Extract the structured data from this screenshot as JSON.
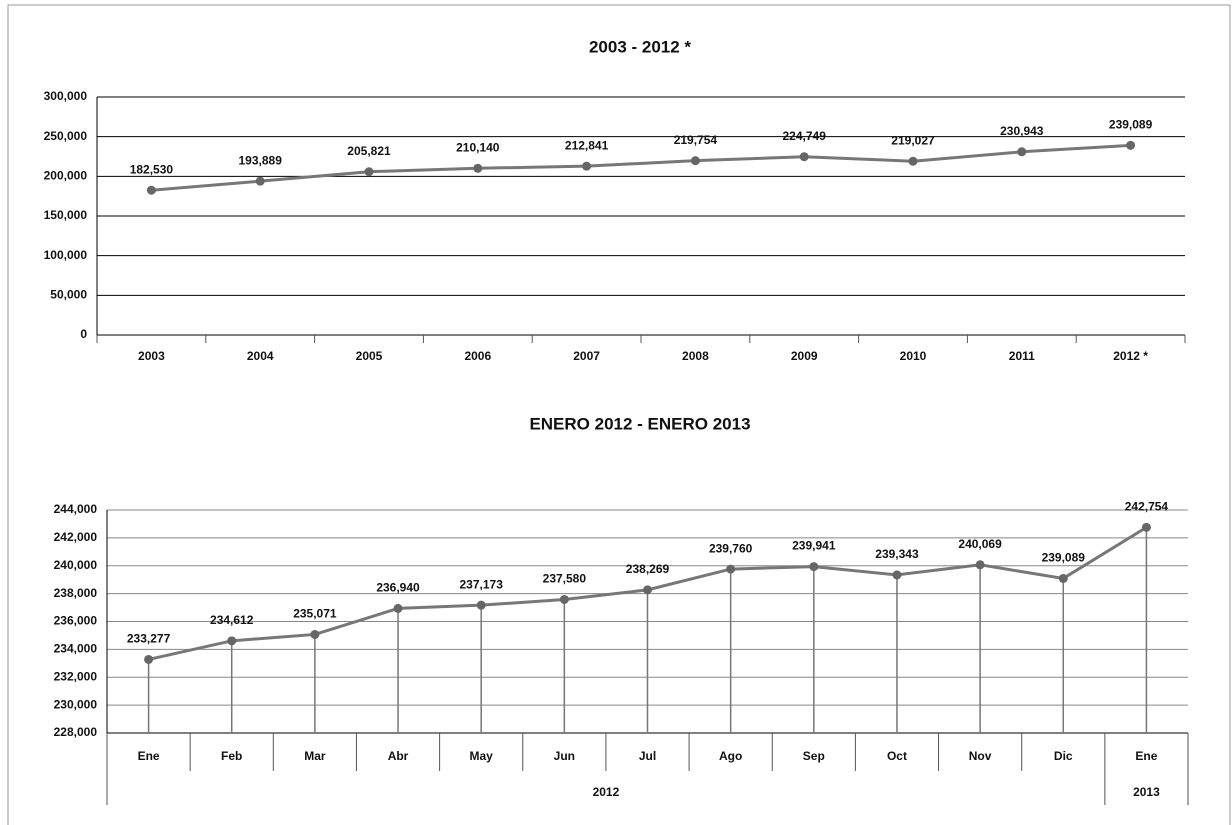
{
  "chart_data": [
    {
      "type": "line",
      "title": "2003 - 2012 *",
      "categories": [
        "2003",
        "2004",
        "2005",
        "2006",
        "2007",
        "2008",
        "2009",
        "2010",
        "2011",
        "2012 *"
      ],
      "values": [
        182530,
        193889,
        205821,
        210140,
        212841,
        219754,
        224749,
        219027,
        230943,
        239089
      ],
      "value_labels": [
        "182,530",
        "193,889",
        "205,821",
        "210,140",
        "212,841",
        "219,754",
        "224,749",
        "219,027",
        "230,943",
        "239,089"
      ],
      "color": "#777777",
      "ylim": [
        0,
        300000
      ],
      "yticks": [
        0,
        {
          "value": 50000,
          "label": "50,000"
        },
        {
          "value": 100000,
          "label": "100,000"
        },
        {
          "value": 150000,
          "label": "150,000"
        },
        {
          "value": 200000,
          "label": "200,000"
        },
        {
          "value": 250000,
          "label": "250,000"
        },
        {
          "value": 300000,
          "label": "300,000"
        }
      ],
      "grid": true
    },
    {
      "type": "line",
      "title": "ENERO 2012 - ENERO 2013",
      "categories": [
        "Ene",
        "Feb",
        "Mar",
        "Abr",
        "May",
        "Jun",
        "Jul",
        "Ago",
        "Sep",
        "Oct",
        "Nov",
        "Dic",
        "Ene"
      ],
      "groups": [
        "2012",
        "2013"
      ],
      "values": [
        233277,
        234612,
        235071,
        236940,
        237173,
        237580,
        238269,
        239760,
        239941,
        239343,
        240069,
        239089,
        242754
      ],
      "value_labels": [
        "233,277",
        "234,612",
        "235,071",
        "236,940",
        "237,173",
        "237,580",
        "238,269",
        "239,760",
        "239,941",
        "239,343",
        "240,069",
        "239,089",
        "242,754"
      ],
      "color": "#777777",
      "ylim": [
        228000,
        244000
      ],
      "yticks": [
        {
          "value": 228000,
          "label": "228,000"
        },
        {
          "value": 230000,
          "label": "230,000"
        },
        {
          "value": 232000,
          "label": "232,000"
        },
        {
          "value": 234000,
          "label": "234,000"
        },
        {
          "value": 236000,
          "label": "236,000"
        },
        {
          "value": 238000,
          "label": "238,000"
        },
        {
          "value": 240000,
          "label": "240,000"
        },
        {
          "value": 242000,
          "label": "242,000"
        },
        {
          "value": 244000,
          "label": "244,000"
        }
      ],
      "grid": true
    }
  ]
}
